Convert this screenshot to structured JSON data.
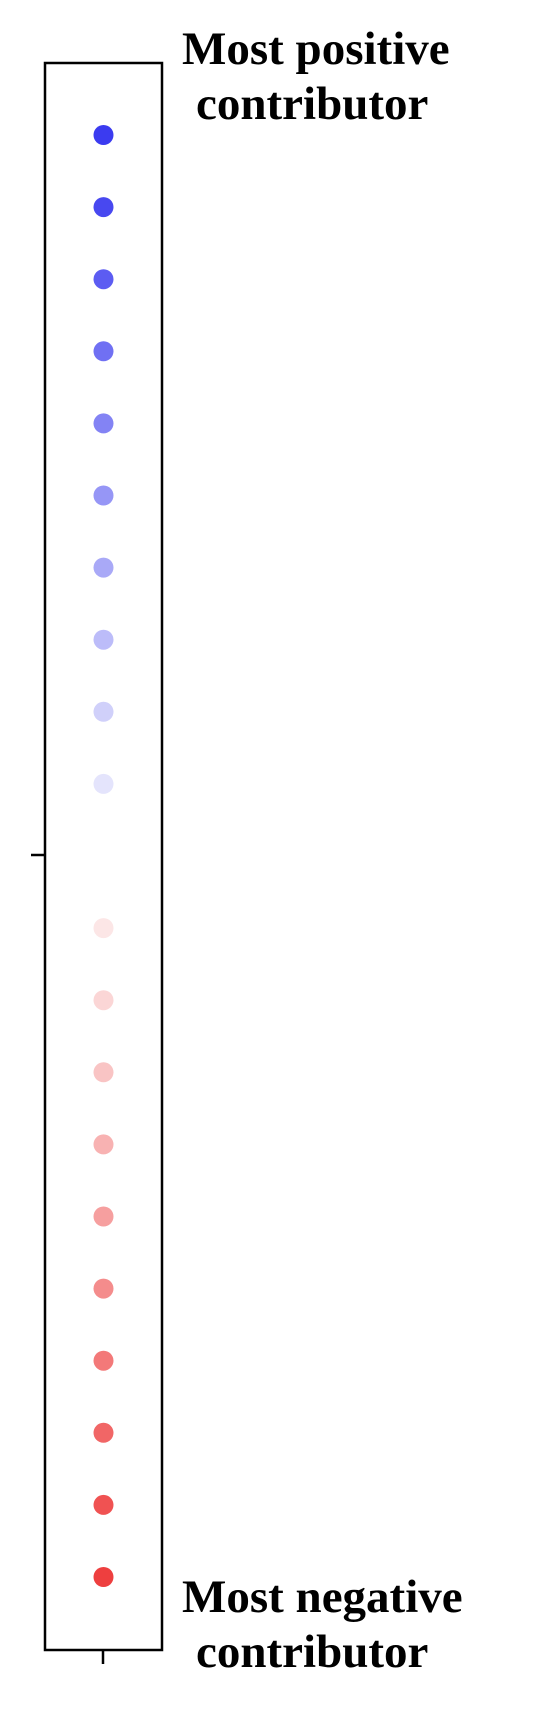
{
  "chart_data": {
    "type": "scatter",
    "x": [
      0,
      0,
      0,
      0,
      0,
      0,
      0,
      0,
      0,
      0,
      0,
      0,
      0,
      0,
      0,
      0,
      0,
      0,
      0,
      0
    ],
    "y": [
      10,
      9,
      8,
      7,
      6,
      5,
      4,
      3,
      2,
      1,
      -1,
      -2,
      -3,
      -4,
      -5,
      -6,
      -7,
      -8,
      -9,
      -10
    ],
    "colors": [
      "#3b3bf0",
      "#4848f0",
      "#5c5cf2",
      "#7070f3",
      "#8383f4",
      "#9696f6",
      "#a9a9f7",
      "#bcbcf9",
      "#d0d0fa",
      "#e4e4fc",
      "#fce6e6",
      "#fbd6d6",
      "#f9c4c4",
      "#f8b2b2",
      "#f69f9f",
      "#f48c8c",
      "#f37979",
      "#f16666",
      "#f05252",
      "#ee3f3f"
    ],
    "annotations": {
      "top": [
        "Most positive",
        "contributor"
      ],
      "bottom": [
        "Most negative",
        "contributor"
      ]
    },
    "ylim": [
      -10.5,
      10.5
    ],
    "xlim": [
      -0.5,
      0.5
    ],
    "grid": false,
    "legend": "none"
  }
}
